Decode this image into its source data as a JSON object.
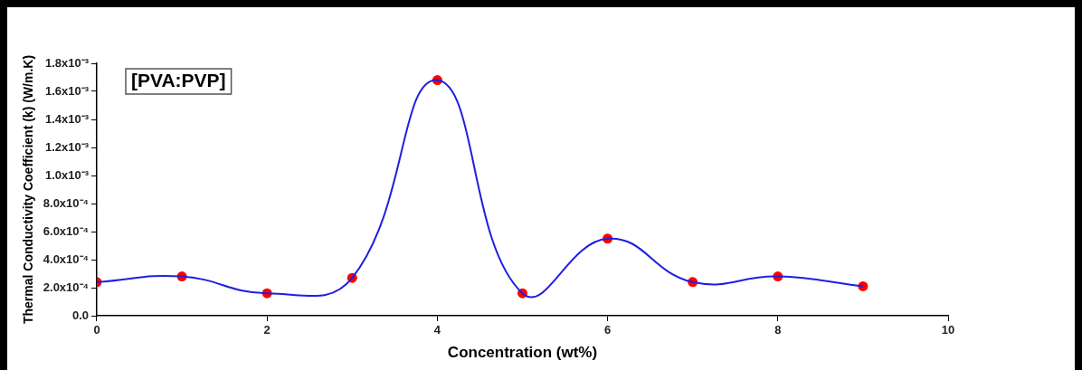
{
  "chart_data": {
    "type": "line",
    "xlabel": "Concentration (wt%)",
    "ylabel": "Thermal Conductivity Coefficient (k) (W/m.K)",
    "annotations": [
      "[PVA:PVP]"
    ],
    "x": [
      0,
      1,
      2,
      3,
      4,
      5,
      6,
      7,
      8,
      9
    ],
    "series": [
      {
        "color": "#1f1fe0",
        "marker": "none",
        "values": [
          0.00024,
          0.00028,
          0.00016,
          0.00027,
          0.00168,
          0.00016,
          0.00055,
          0.00024,
          0.00028,
          0.00021
        ]
      },
      {
        "type": "scatter",
        "color": "#ff0000",
        "marker": "circle",
        "values": [
          0.00024,
          0.00028,
          0.00016,
          0.00027,
          0.00168,
          0.00016,
          0.00055,
          0.00024,
          0.00028,
          0.00021
        ]
      }
    ],
    "xlim": [
      0,
      10
    ],
    "xticks": [
      0,
      2,
      4,
      6,
      8,
      10
    ],
    "ylim": [
      0,
      0.0018
    ],
    "yticks": [
      {
        "value": 0,
        "label": "0.0"
      },
      {
        "value": 0.0002,
        "label": "2.0x10⁻⁴"
      },
      {
        "value": 0.0004,
        "label": "4.0x10⁻⁴"
      },
      {
        "value": 0.0006,
        "label": "6.0x10⁻⁴"
      },
      {
        "value": 0.0008,
        "label": "8.0x10⁻⁴"
      },
      {
        "value": 0.001,
        "label": "1.0x10⁻³"
      },
      {
        "value": 0.0012,
        "label": "1.2x10⁻³"
      },
      {
        "value": 0.0014,
        "label": "1.4x10⁻³"
      },
      {
        "value": 0.0016,
        "label": "1.6x10⁻³"
      },
      {
        "value": 0.0018,
        "label": "1.8x10⁻³"
      }
    ],
    "grid": false,
    "legend": false
  }
}
